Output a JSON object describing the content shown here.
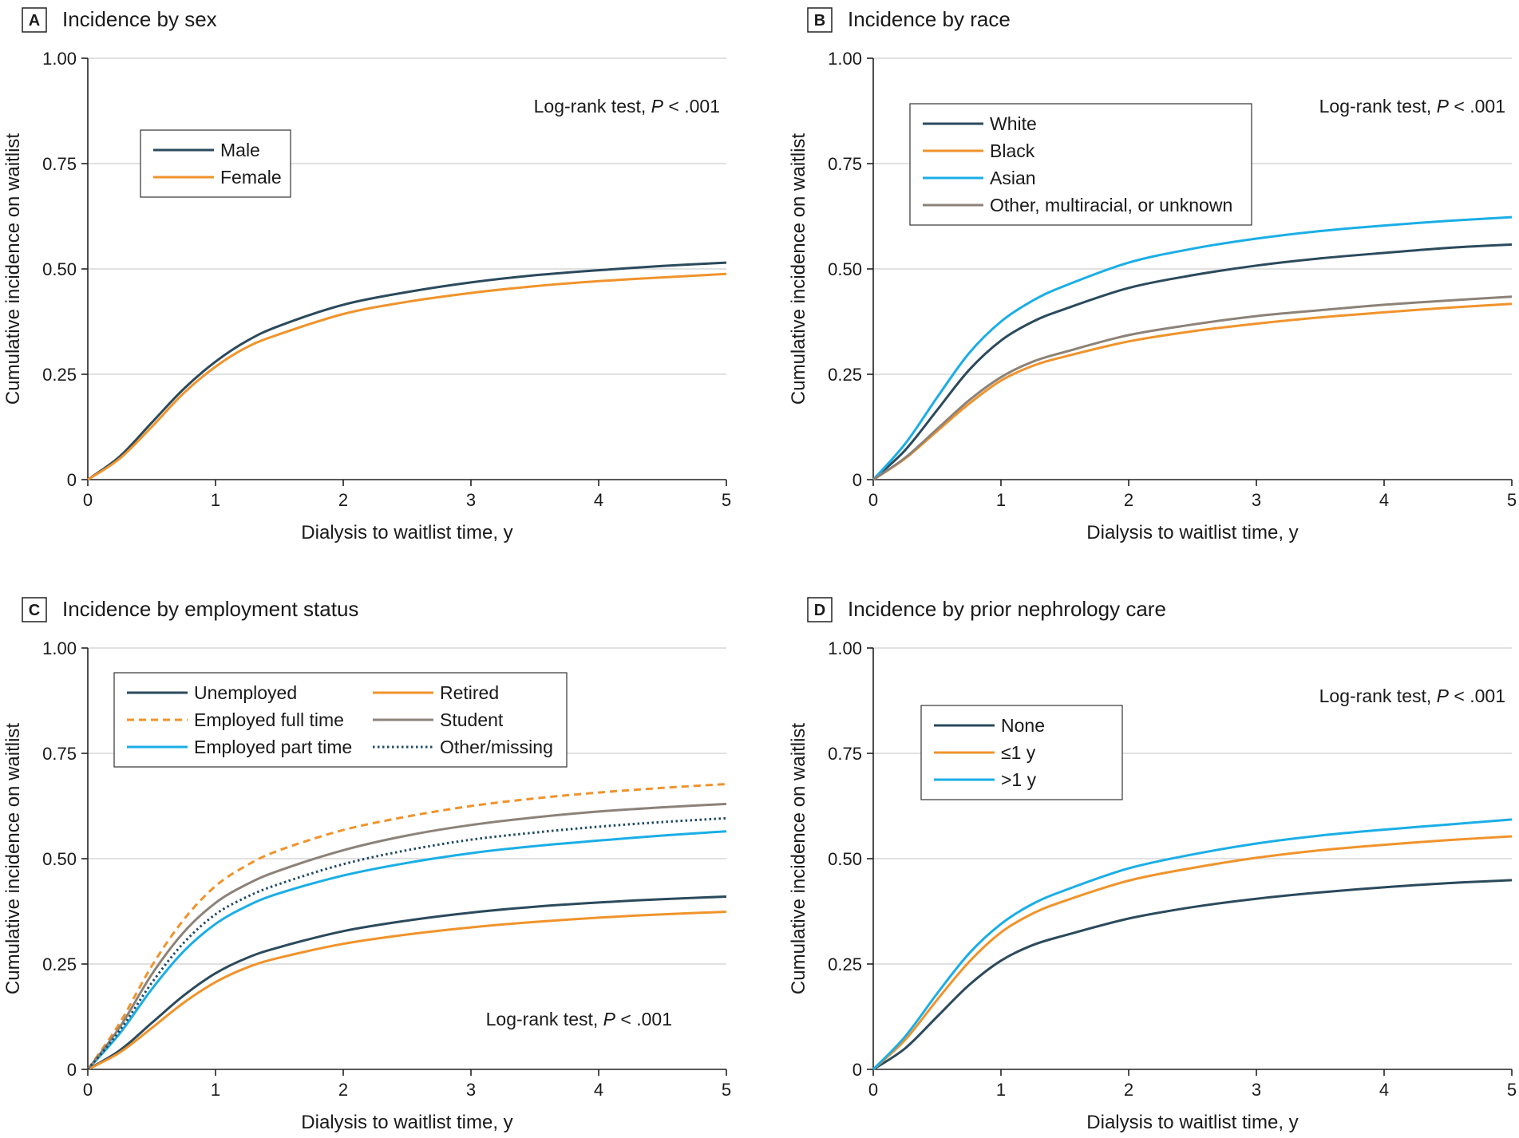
{
  "chart_data": [
    {
      "type": "line",
      "panel": "A",
      "title": "Incidence by sex",
      "xlabel": "Dialysis to waitlist time, y",
      "ylabel": "Cumulative incidence on waitlist",
      "xlim": [
        0,
        5
      ],
      "ylim": [
        0,
        1
      ],
      "xticks": [
        "0",
        "1",
        "2",
        "3",
        "4",
        "5"
      ],
      "yticks": [
        "0",
        "0.25",
        "0.50",
        "0.75",
        "1.00"
      ],
      "grid": "horizontal",
      "annotation": {
        "pre": "Log-rank test, ",
        "p": "P",
        "post": " < .001",
        "placement": "top-right"
      },
      "legend_placement": "upper-left",
      "legend_columns": 1,
      "x": [
        0,
        0.25,
        0.5,
        0.75,
        1,
        1.25,
        1.5,
        2,
        2.5,
        3,
        3.5,
        4,
        4.5,
        5
      ],
      "series": [
        {
          "name": "Male",
          "color": "#2b4a5c",
          "dash": "solid",
          "values": [
            0,
            0.055,
            0.135,
            0.215,
            0.28,
            0.33,
            0.365,
            0.415,
            0.445,
            0.468,
            0.485,
            0.497,
            0.507,
            0.515
          ]
        },
        {
          "name": "Female",
          "color": "#f0932b",
          "dash": "solid",
          "values": [
            0,
            0.05,
            0.125,
            0.205,
            0.268,
            0.315,
            0.345,
            0.393,
            0.422,
            0.443,
            0.459,
            0.471,
            0.48,
            0.488
          ]
        }
      ]
    },
    {
      "type": "line",
      "panel": "B",
      "title": "Incidence by race",
      "xlabel": "Dialysis to waitlist time, y",
      "ylabel": "Cumulative incidence on waitlist",
      "xlim": [
        0,
        5
      ],
      "ylim": [
        0,
        1
      ],
      "xticks": [
        "0",
        "1",
        "2",
        "3",
        "4",
        "5"
      ],
      "yticks": [
        "0",
        "0.25",
        "0.50",
        "0.75",
        "1.00"
      ],
      "grid": "horizontal",
      "annotation": {
        "pre": "Log-rank test, ",
        "p": "P",
        "post": " < .001",
        "placement": "top-right"
      },
      "legend_placement": "upper-left",
      "legend_columns": 1,
      "x": [
        0,
        0.25,
        0.5,
        0.75,
        1,
        1.25,
        1.5,
        2,
        2.5,
        3,
        3.5,
        4,
        4.5,
        5
      ],
      "series": [
        {
          "name": "White",
          "color": "#2b4a5c",
          "dash": "solid",
          "values": [
            0,
            0.07,
            0.165,
            0.26,
            0.33,
            0.375,
            0.405,
            0.455,
            0.485,
            0.508,
            0.525,
            0.538,
            0.55,
            0.558
          ]
        },
        {
          "name": "Black",
          "color": "#f0932b",
          "dash": "solid",
          "values": [
            0,
            0.05,
            0.115,
            0.18,
            0.235,
            0.27,
            0.292,
            0.328,
            0.352,
            0.37,
            0.385,
            0.397,
            0.408,
            0.417
          ]
        },
        {
          "name": "Asian",
          "color": "#1aaee6",
          "dash": "solid",
          "values": [
            0,
            0.085,
            0.195,
            0.3,
            0.375,
            0.425,
            0.46,
            0.515,
            0.548,
            0.572,
            0.59,
            0.603,
            0.614,
            0.623
          ]
        },
        {
          "name": "Other, multiracial, or unknown",
          "color": "#8c8278",
          "dash": "solid",
          "values": [
            0,
            0.052,
            0.12,
            0.188,
            0.243,
            0.28,
            0.303,
            0.343,
            0.368,
            0.388,
            0.402,
            0.415,
            0.425,
            0.434
          ]
        }
      ]
    },
    {
      "type": "line",
      "panel": "C",
      "title": "Incidence by employment status",
      "xlabel": "Dialysis to waitlist time, y",
      "ylabel": "Cumulative incidence on waitlist",
      "xlim": [
        0,
        5
      ],
      "ylim": [
        0,
        1
      ],
      "xticks": [
        "0",
        "1",
        "2",
        "3",
        "4",
        "5"
      ],
      "yticks": [
        "0",
        "0.25",
        "0.50",
        "0.75",
        "1.00"
      ],
      "grid": "horizontal",
      "annotation": {
        "pre": "Log-rank test, ",
        "p": "P",
        "post": " < .001",
        "placement": "lower-right"
      },
      "legend_placement": "upper-left",
      "legend_columns": 2,
      "x": [
        0,
        0.25,
        0.5,
        0.75,
        1,
        1.25,
        1.5,
        2,
        2.5,
        3,
        3.5,
        4,
        4.5,
        5
      ],
      "series": [
        {
          "name": "Unemployed",
          "color": "#2b4a5c",
          "dash": "solid",
          "values": [
            0,
            0.045,
            0.11,
            0.175,
            0.228,
            0.265,
            0.29,
            0.328,
            0.353,
            0.372,
            0.386,
            0.396,
            0.404,
            0.41
          ]
        },
        {
          "name": "Employed full time",
          "color": "#f0932b",
          "dash": "dashed",
          "values": [
            0,
            0.11,
            0.245,
            0.355,
            0.435,
            0.485,
            0.52,
            0.568,
            0.6,
            0.625,
            0.643,
            0.657,
            0.668,
            0.677
          ]
        },
        {
          "name": "Employed part time",
          "color": "#1aaee6",
          "dash": "solid",
          "values": [
            0,
            0.085,
            0.19,
            0.28,
            0.345,
            0.388,
            0.418,
            0.46,
            0.49,
            0.513,
            0.53,
            0.543,
            0.555,
            0.565
          ]
        },
        {
          "name": "Retired",
          "color": "#f0932b",
          "dash": "solid",
          "values": [
            0,
            0.04,
            0.098,
            0.158,
            0.207,
            0.242,
            0.265,
            0.298,
            0.32,
            0.337,
            0.35,
            0.36,
            0.368,
            0.374
          ]
        },
        {
          "name": "Student",
          "color": "#8c8278",
          "dash": "solid",
          "values": [
            0,
            0.1,
            0.225,
            0.325,
            0.395,
            0.44,
            0.472,
            0.52,
            0.555,
            0.58,
            0.598,
            0.612,
            0.622,
            0.63
          ]
        },
        {
          "name": "Other/missing",
          "color": "#1f4a66",
          "dash": "dotted",
          "values": [
            0,
            0.092,
            0.205,
            0.3,
            0.368,
            0.41,
            0.44,
            0.487,
            0.52,
            0.545,
            0.562,
            0.576,
            0.587,
            0.596
          ]
        }
      ]
    },
    {
      "type": "line",
      "panel": "D",
      "title": "Incidence by prior nephrology care",
      "xlabel": "Dialysis to waitlist time, y",
      "ylabel": "Cumulative incidence on waitlist",
      "xlim": [
        0,
        5
      ],
      "ylim": [
        0,
        1
      ],
      "xticks": [
        "0",
        "1",
        "2",
        "3",
        "4",
        "5"
      ],
      "yticks": [
        "0",
        "0.25",
        "0.50",
        "0.75",
        "1.00"
      ],
      "grid": "horizontal",
      "annotation": {
        "pre": "Log-rank test, ",
        "p": "P",
        "post": " < .001",
        "placement": "top-right"
      },
      "legend_placement": "upper-left",
      "legend_columns": 1,
      "x": [
        0,
        0.25,
        0.5,
        0.75,
        1,
        1.25,
        1.5,
        2,
        2.5,
        3,
        3.5,
        4,
        4.5,
        5
      ],
      "series": [
        {
          "name": "None",
          "color": "#2b4a5c",
          "dash": "solid",
          "values": [
            0,
            0.05,
            0.125,
            0.2,
            0.258,
            0.295,
            0.318,
            0.358,
            0.385,
            0.405,
            0.42,
            0.432,
            0.442,
            0.449
          ]
        },
        {
          "name": "≤1 y",
          "color": "#f0932b",
          "dash": "solid",
          "values": [
            0,
            0.07,
            0.165,
            0.255,
            0.325,
            0.37,
            0.4,
            0.448,
            0.478,
            0.502,
            0.52,
            0.533,
            0.544,
            0.553
          ]
        },
        {
          "name": ">1 y",
          "color": "#1aaee6",
          "dash": "solid",
          "values": [
            0,
            0.078,
            0.18,
            0.275,
            0.345,
            0.393,
            0.425,
            0.477,
            0.51,
            0.536,
            0.555,
            0.569,
            0.581,
            0.593
          ]
        }
      ]
    }
  ]
}
